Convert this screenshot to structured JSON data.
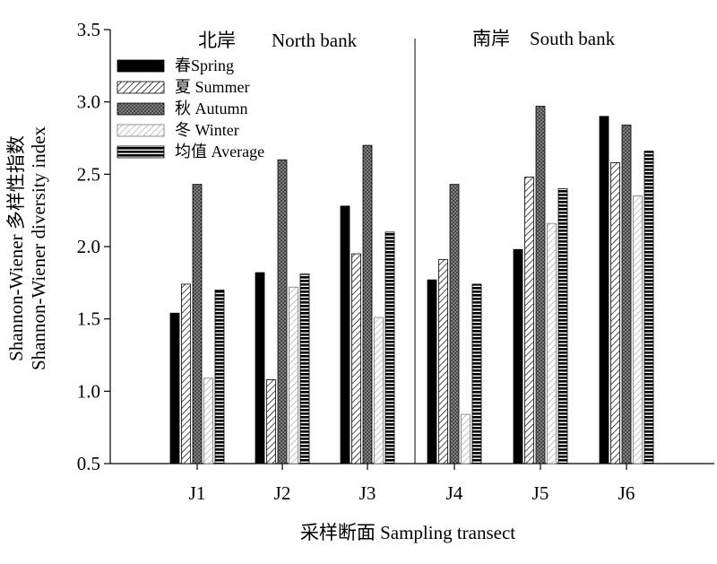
{
  "chart_data": {
    "type": "bar",
    "categories": [
      "J1",
      "J2",
      "J3",
      "J4",
      "J5",
      "J6"
    ],
    "series": [
      {
        "name": "春Spring",
        "pattern": "solid",
        "values": [
          1.54,
          1.82,
          2.28,
          1.77,
          1.98,
          2.9
        ]
      },
      {
        "name": "夏 Summer",
        "pattern": "diag",
        "values": [
          1.74,
          1.08,
          1.95,
          1.91,
          2.48,
          2.58
        ]
      },
      {
        "name": "秋 Autumn",
        "pattern": "cross",
        "values": [
          2.43,
          2.6,
          2.7,
          2.43,
          2.97,
          2.84
        ]
      },
      {
        "name": "冬 Winter",
        "pattern": "lightdiag",
        "values": [
          1.09,
          1.72,
          1.51,
          0.84,
          2.16,
          2.35
        ]
      },
      {
        "name": "均值 Average",
        "pattern": "hstripe",
        "values": [
          1.7,
          1.81,
          2.1,
          1.74,
          2.4,
          2.66
        ]
      }
    ],
    "ylim": [
      0.5,
      3.5
    ],
    "yticks": [
      "0.5",
      "1.0",
      "1.5",
      "2.0",
      "2.5",
      "3.0",
      "3.5"
    ],
    "ylabel_cn": "Shannon-Wiener 多样性指数",
    "ylabel_en": "Shannon-Wiener diversity index",
    "xlabel": "采样断面 Sampling transect",
    "regions": [
      {
        "cn": "北岸",
        "en": "North bank"
      },
      {
        "cn": "南岸",
        "en": "South bank"
      }
    ],
    "legend_position": "top-left",
    "grid": false
  }
}
